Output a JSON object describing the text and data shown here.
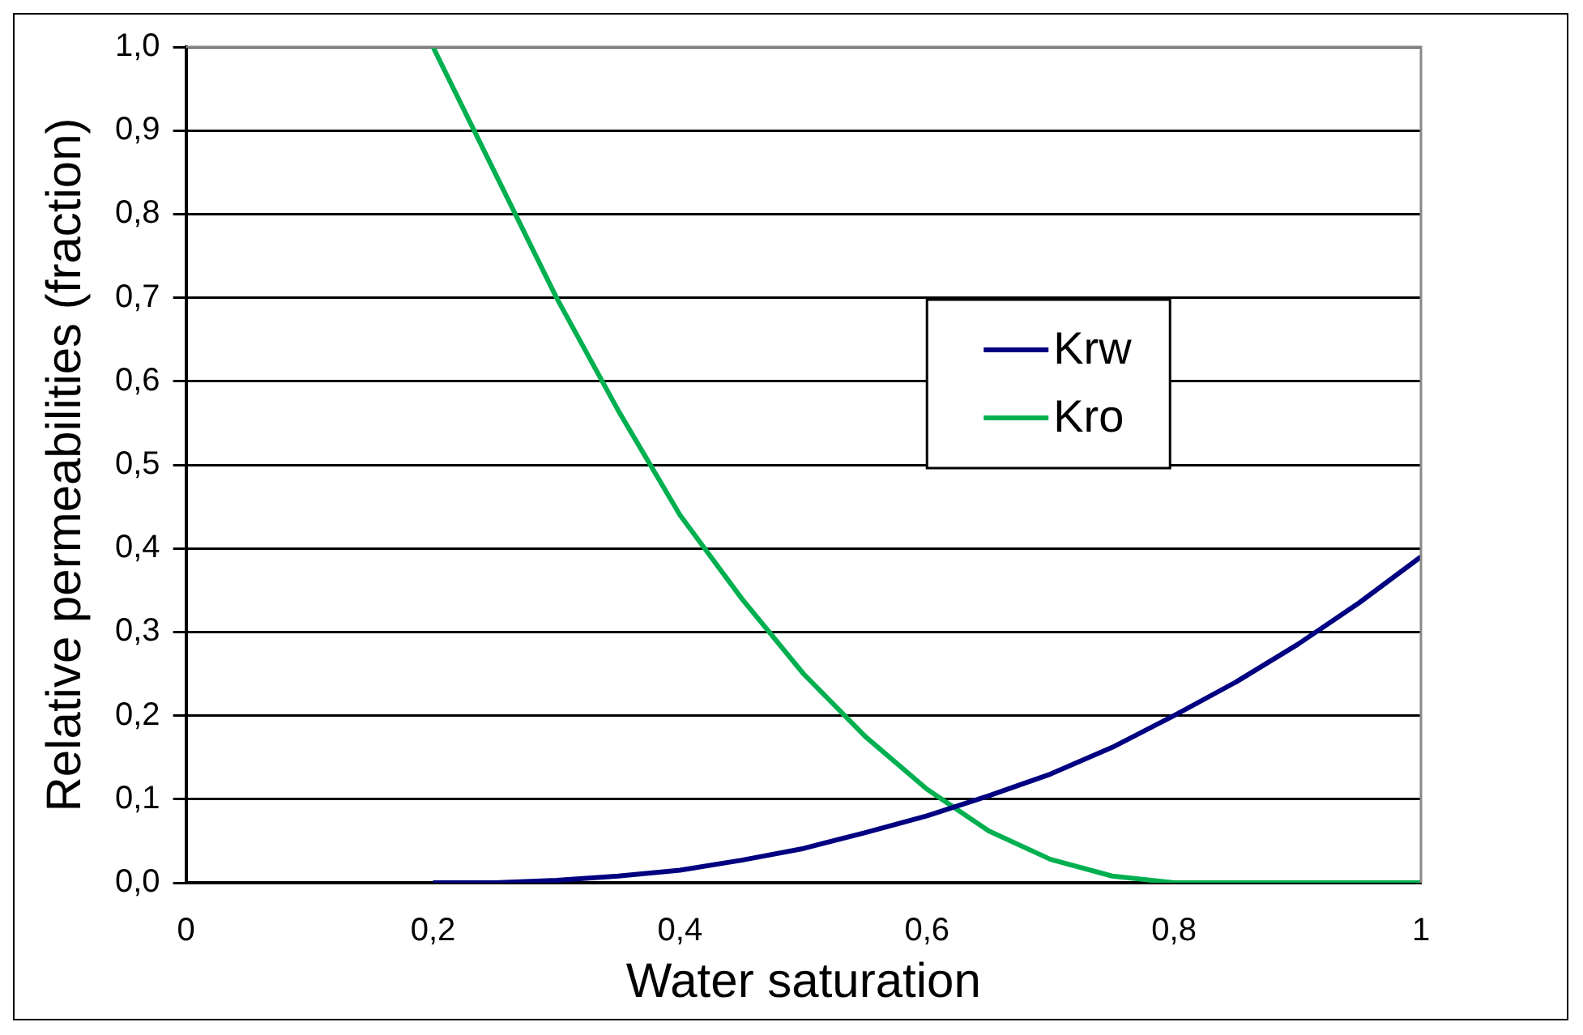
{
  "chart_data": {
    "type": "line",
    "xlabel": "Water saturation",
    "ylabel": "Relative permeabilities (fraction)",
    "xlim": [
      0,
      1
    ],
    "xticks": [
      0,
      {
        "value": 0.2,
        "label": "0,2"
      },
      {
        "value": 0.4,
        "label": "0,4"
      },
      {
        "value": 0.6,
        "label": "0,6"
      },
      {
        "value": 0.8,
        "label": "0,8"
      },
      1
    ],
    "ylim": [
      0,
      1
    ],
    "yticks": [
      {
        "value": 0,
        "label": "0,0"
      },
      {
        "value": 0.1,
        "label": "0,1"
      },
      {
        "value": 0.2,
        "label": "0,2"
      },
      {
        "value": 0.3,
        "label": "0,3"
      },
      {
        "value": 0.4,
        "label": "0,4"
      },
      {
        "value": 0.5,
        "label": "0,5"
      },
      {
        "value": 0.6,
        "label": "0,6"
      },
      {
        "value": 0.7,
        "label": "0,7"
      },
      {
        "value": 0.8,
        "label": "0,8"
      },
      {
        "value": 0.9,
        "label": "0,9"
      },
      {
        "value": 1,
        "label": "1,0"
      }
    ],
    "x": [
      0.2,
      0.25,
      0.3,
      0.35,
      0.4,
      0.45,
      0.5,
      0.55,
      0.6,
      0.65,
      0.7,
      0.75,
      0.8,
      0.85,
      0.9,
      0.95,
      1
    ],
    "series": [
      {
        "name": "Krw",
        "color": "#000080",
        "values": [
          0,
          0,
          0.003,
          0.008,
          0.015,
          0.027,
          0.041,
          0.06,
          0.08,
          0.104,
          0.13,
          0.162,
          0.2,
          0.24,
          0.285,
          0.335,
          0.39
        ]
      },
      {
        "name": "Kro",
        "color": "#00b050",
        "values": [
          1,
          0.85,
          0.7,
          0.565,
          0.44,
          0.34,
          0.25,
          0.175,
          0.112,
          0.062,
          0.028,
          0.008,
          0,
          0,
          0,
          0,
          0
        ]
      }
    ],
    "grid": "y",
    "legend": "right",
    "marker": "none",
    "line_style": "solid"
  }
}
